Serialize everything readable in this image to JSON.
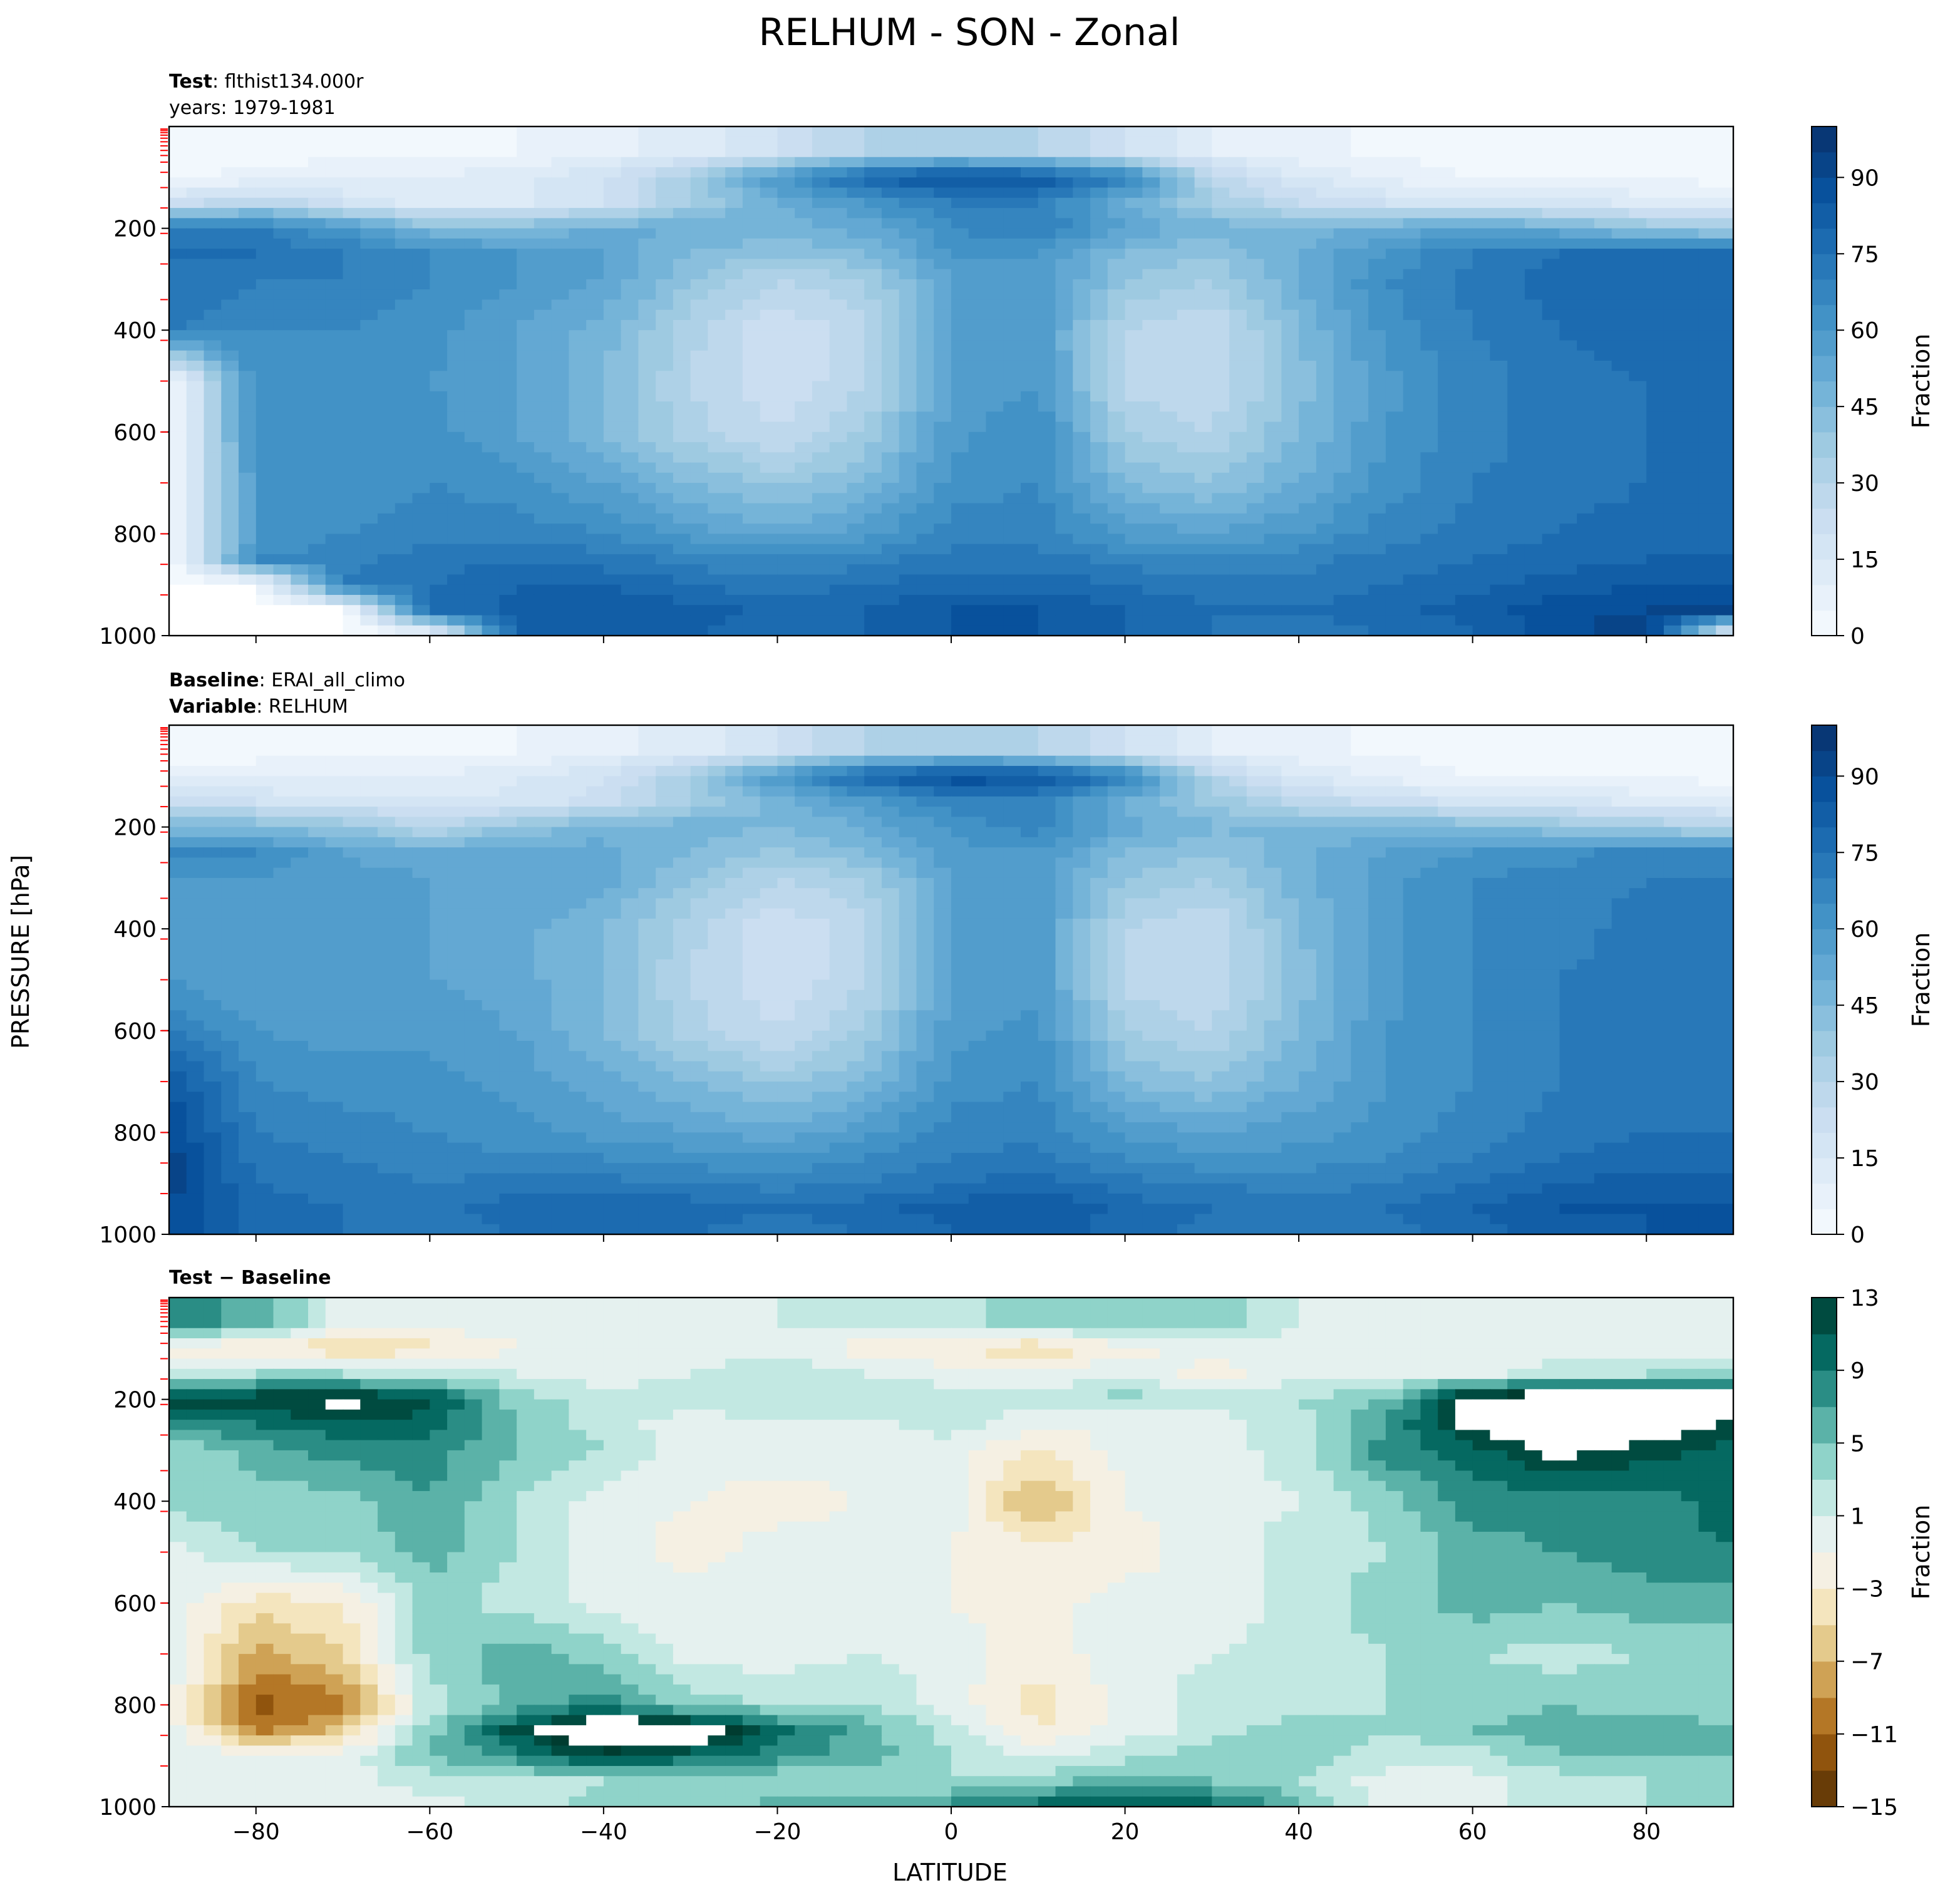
{
  "title": "RELHUM - SON - Zonal",
  "xlabel": "LATITUDE",
  "ylabel": "PRESSURE [hPa]",
  "panels": [
    {
      "id": "test",
      "sub1": {
        "bold": "Test",
        "text": ": flthist134.000r"
      },
      "sub2": {
        "bold": "",
        "text": "years: 1979-1981"
      },
      "colorbar_label": "Fraction",
      "colorbar_ticks": [
        "0",
        "15",
        "30",
        "45",
        "60",
        "75",
        "90"
      ],
      "colormap": "Blues"
    },
    {
      "id": "baseline",
      "sub1": {
        "bold": "Baseline",
        "text": ": ERAI_all_climo"
      },
      "sub2": {
        "bold": "Variable",
        "text": ": RELHUM"
      },
      "colorbar_label": "Fraction",
      "colorbar_ticks": [
        "0",
        "15",
        "30",
        "45",
        "60",
        "75",
        "90"
      ],
      "colormap": "Blues"
    },
    {
      "id": "diff",
      "sub1": {
        "bold": "Test − Baseline",
        "text": ""
      },
      "sub2": {
        "bold": "",
        "text": ""
      },
      "colorbar_label": "Fraction",
      "colorbar_ticks": [
        "13",
        "9",
        "5",
        "1",
        "−3",
        "−7",
        "−11",
        "−15"
      ],
      "colormap": "BrBG"
    }
  ],
  "chart_data": {
    "type": "heatmap",
    "title": "RELHUM - SON - Zonal",
    "xlabel": "LATITUDE",
    "ylabel": "PRESSURE [hPa]",
    "x_ticks": [
      -80,
      -60,
      -40,
      -20,
      0,
      20,
      40,
      60,
      80
    ],
    "x_range": [
      -90,
      90
    ],
    "y_ticks": [
      200,
      400,
      600,
      800,
      1000
    ],
    "y_range": [
      1000,
      0
    ],
    "lat_grid": [
      -90,
      -80,
      -70,
      -60,
      -50,
      -40,
      -30,
      -20,
      -10,
      0,
      10,
      20,
      30,
      40,
      50,
      60,
      70,
      80,
      90
    ],
    "lev_grid": [
      50,
      100,
      150,
      200,
      250,
      300,
      400,
      500,
      600,
      700,
      800,
      850,
      900,
      950,
      1000
    ],
    "test": {
      "colorbar_range": [
        0,
        100
      ],
      "colorbar_levels_step": 5,
      "approx_values": [
        [
          2,
          3,
          4,
          4,
          5,
          8,
          12,
          20,
          30,
          35,
          30,
          20,
          10,
          6,
          4,
          3,
          3,
          2,
          2
        ],
        [
          5,
          6,
          8,
          10,
          14,
          20,
          35,
          60,
          80,
          88,
          85,
          70,
          30,
          15,
          8,
          5,
          4,
          3,
          3
        ],
        [
          20,
          30,
          20,
          12,
          14,
          20,
          35,
          50,
          60,
          70,
          70,
          50,
          35,
          25,
          20,
          18,
          16,
          14,
          12
        ],
        [
          70,
          70,
          60,
          45,
          45,
          50,
          50,
          48,
          52,
          65,
          70,
          55,
          48,
          48,
          50,
          55,
          50,
          40,
          35
        ],
        [
          75,
          75,
          70,
          65,
          60,
          55,
          45,
          40,
          45,
          60,
          60,
          45,
          40,
          50,
          60,
          70,
          75,
          78,
          78
        ],
        [
          75,
          70,
          70,
          65,
          60,
          55,
          40,
          30,
          35,
          55,
          60,
          40,
          35,
          50,
          65,
          72,
          78,
          80,
          80
        ],
        [
          70,
          65,
          65,
          62,
          55,
          48,
          32,
          20,
          28,
          55,
          58,
          30,
          25,
          45,
          62,
          70,
          75,
          78,
          78
        ],
        [
          0,
          65,
          60,
          60,
          55,
          45,
          30,
          20,
          30,
          55,
          60,
          28,
          25,
          42,
          58,
          68,
          72,
          75,
          75
        ],
        [
          0,
          65,
          60,
          62,
          55,
          45,
          32,
          25,
          35,
          58,
          65,
          35,
          30,
          45,
          60,
          68,
          72,
          75,
          75
        ],
        [
          0,
          60,
          60,
          65,
          62,
          55,
          45,
          38,
          45,
          62,
          65,
          45,
          40,
          50,
          62,
          70,
          72,
          75,
          75
        ],
        [
          0,
          60,
          65,
          68,
          68,
          65,
          58,
          52,
          58,
          68,
          68,
          58,
          55,
          60,
          68,
          72,
          75,
          78,
          78
        ],
        [
          0,
          65,
          68,
          72,
          75,
          72,
          68,
          65,
          68,
          72,
          72,
          68,
          65,
          68,
          72,
          75,
          78,
          80,
          80
        ],
        [
          0,
          0,
          70,
          75,
          80,
          80,
          75,
          72,
          75,
          78,
          78,
          75,
          72,
          72,
          75,
          78,
          82,
          85,
          85
        ],
        [
          0,
          0,
          0,
          75,
          82,
          85,
          82,
          78,
          80,
          85,
          85,
          80,
          75,
          75,
          78,
          82,
          88,
          90,
          90
        ],
        [
          0,
          0,
          0,
          0,
          80,
          82,
          80,
          78,
          80,
          85,
          85,
          80,
          75,
          72,
          75,
          80,
          88,
          95,
          0
        ]
      ]
    },
    "baseline": {
      "colorbar_range": [
        0,
        100
      ],
      "colorbar_levels_step": 5,
      "approx_values": [
        [
          2,
          3,
          4,
          4,
          5,
          8,
          12,
          20,
          30,
          35,
          30,
          20,
          10,
          6,
          4,
          3,
          3,
          2,
          2
        ],
        [
          8,
          8,
          8,
          10,
          14,
          20,
          35,
          60,
          80,
          90,
          88,
          70,
          30,
          15,
          8,
          5,
          4,
          3,
          3
        ],
        [
          20,
          20,
          18,
          16,
          16,
          22,
          35,
          48,
          58,
          68,
          68,
          50,
          38,
          28,
          22,
          18,
          16,
          14,
          12
        ],
        [
          45,
          45,
          40,
          30,
          40,
          48,
          48,
          45,
          50,
          62,
          68,
          52,
          46,
          45,
          46,
          45,
          40,
          35,
          30
        ],
        [
          65,
          65,
          55,
          50,
          55,
          52,
          45,
          38,
          45,
          58,
          60,
          45,
          40,
          48,
          55,
          60,
          62,
          68,
          70
        ],
        [
          60,
          60,
          58,
          55,
          55,
          52,
          40,
          30,
          35,
          55,
          58,
          40,
          35,
          48,
          58,
          65,
          68,
          70,
          70
        ],
        [
          55,
          55,
          55,
          55,
          52,
          45,
          32,
          20,
          28,
          55,
          58,
          30,
          25,
          45,
          58,
          65,
          68,
          72,
          72
        ],
        [
          60,
          55,
          55,
          55,
          52,
          45,
          30,
          20,
          30,
          55,
          58,
          28,
          25,
          42,
          58,
          65,
          70,
          72,
          72
        ],
        [
          70,
          60,
          58,
          58,
          55,
          45,
          32,
          25,
          35,
          58,
          62,
          35,
          30,
          45,
          60,
          65,
          70,
          72,
          72
        ],
        [
          85,
          65,
          62,
          62,
          58,
          52,
          45,
          38,
          45,
          62,
          65,
          45,
          40,
          50,
          60,
          65,
          70,
          72,
          72
        ],
        [
          90,
          70,
          68,
          65,
          62,
          58,
          55,
          52,
          58,
          68,
          68,
          58,
          55,
          58,
          62,
          68,
          72,
          75,
          75
        ],
        [
          92,
          72,
          70,
          68,
          65,
          65,
          62,
          60,
          65,
          70,
          72,
          65,
          60,
          62,
          65,
          70,
          75,
          78,
          78
        ],
        [
          92,
          75,
          72,
          70,
          72,
          72,
          70,
          68,
          70,
          75,
          78,
          72,
          70,
          68,
          70,
          75,
          80,
          82,
          82
        ],
        [
          90,
          78,
          75,
          72,
          78,
          80,
          78,
          75,
          78,
          82,
          85,
          78,
          75,
          72,
          75,
          80,
          85,
          85,
          85
        ],
        [
          88,
          78,
          75,
          72,
          75,
          78,
          75,
          72,
          75,
          80,
          82,
          78,
          72,
          70,
          72,
          78,
          82,
          85,
          88
        ]
      ]
    },
    "diff": {
      "colorbar_range": [
        -15,
        13
      ],
      "colorbar_levels_step": 2,
      "approx_values": [
        [
          8,
          6,
          0,
          0,
          0,
          0,
          0,
          1,
          2,
          2,
          4,
          5,
          4,
          1,
          0,
          0,
          -1,
          0,
          -1
        ],
        [
          -3,
          -3,
          -5,
          -4,
          -1,
          0,
          0,
          0,
          -2,
          -3,
          -5,
          -2,
          0,
          0,
          0,
          0,
          0,
          0,
          0
        ],
        [
          2,
          3,
          3,
          2,
          1,
          0,
          1,
          3,
          1,
          0,
          -1,
          1,
          -2,
          0,
          0,
          0,
          2,
          3,
          3
        ],
        [
          12,
          13,
          14,
          12,
          4,
          2,
          2,
          2,
          3,
          2,
          2,
          4,
          2,
          3,
          5,
          16,
          16,
          16,
          16
        ],
        [
          8,
          9,
          10,
          10,
          5,
          2,
          0,
          1,
          0,
          2,
          -1,
          -1,
          0,
          2,
          7,
          14,
          16,
          16,
          12
        ],
        [
          3,
          6,
          8,
          8,
          5,
          3,
          0,
          0,
          0,
          0,
          -3,
          0,
          0,
          2,
          8,
          10,
          14,
          12,
          10
        ],
        [
          4,
          4,
          4,
          7,
          3,
          0,
          -1,
          -2,
          -1,
          0,
          -8,
          -1,
          0,
          1,
          4,
          8,
          8,
          8,
          10
        ],
        [
          0,
          3,
          3,
          6,
          3,
          0,
          -2,
          0,
          0,
          -1,
          -2,
          -2,
          0,
          2,
          3,
          6,
          7,
          8,
          9
        ],
        [
          0,
          -4,
          -3,
          4,
          2,
          0,
          0,
          0,
          -1,
          -1,
          -2,
          0,
          -1,
          2,
          4,
          6,
          5,
          6,
          6
        ],
        [
          0,
          -8,
          -5,
          4,
          6,
          4,
          0,
          0,
          1,
          0,
          -2,
          0,
          1,
          2,
          3,
          3,
          2,
          3,
          3
        ],
        [
          0,
          -12,
          -10,
          2,
          6,
          8,
          4,
          3,
          3,
          0,
          -4,
          0,
          2,
          2,
          3,
          4,
          5,
          4,
          3
        ],
        [
          0,
          -10,
          -6,
          4,
          12,
          18,
          16,
          10,
          6,
          2,
          -3,
          0,
          2,
          4,
          3,
          5,
          6,
          6,
          6
        ],
        [
          0,
          0,
          0,
          5,
          8,
          12,
          10,
          8,
          6,
          3,
          1,
          2,
          5,
          4,
          2,
          2,
          5,
          5,
          5
        ],
        [
          0,
          0,
          0,
          2,
          2,
          3,
          4,
          3,
          3,
          3,
          4,
          6,
          5,
          3,
          0,
          0,
          2,
          3,
          3
        ],
        [
          0,
          0,
          0,
          0,
          2,
          4,
          4,
          6,
          6,
          8,
          10,
          12,
          10,
          6,
          0,
          0,
          2,
          3,
          3
        ]
      ]
    }
  }
}
